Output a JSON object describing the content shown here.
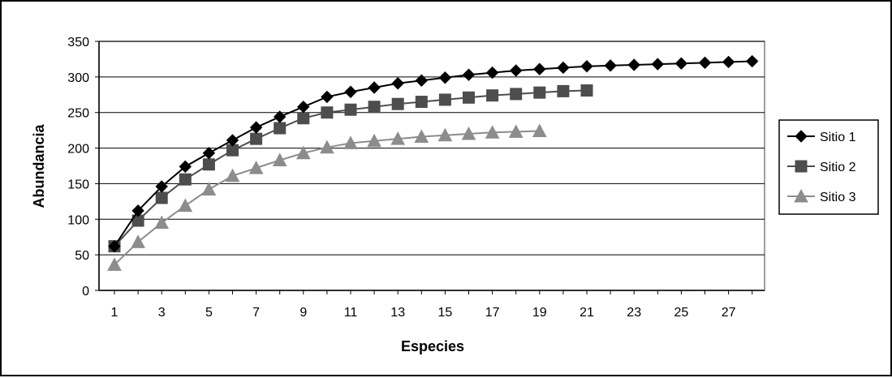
{
  "chart_data": {
    "type": "line",
    "title": "",
    "xlabel": "Especies",
    "ylabel": "Abundancia",
    "x_tick_labels": [
      "1",
      "3",
      "5",
      "7",
      "9",
      "11",
      "13",
      "15",
      "17",
      "19",
      "21",
      "23",
      "25",
      "27"
    ],
    "y_tick_labels": [
      "0",
      "50",
      "100",
      "150",
      "200",
      "250",
      "300",
      "350"
    ],
    "xlim": [
      1,
      28
    ],
    "ylim": [
      0,
      350
    ],
    "y_gridlines": true,
    "x_gridlines": false,
    "legend_position": "right",
    "series": [
      {
        "name": "Sitio 1",
        "marker": "diamond",
        "color": "#000000",
        "x": [
          1,
          2,
          3,
          4,
          5,
          6,
          7,
          8,
          9,
          10,
          11,
          12,
          13,
          14,
          15,
          16,
          17,
          18,
          19,
          20,
          21,
          22,
          23,
          24,
          25,
          26,
          27,
          28
        ],
        "values": [
          62,
          112,
          146,
          174,
          193,
          211,
          229,
          244,
          258,
          272,
          279,
          285,
          291,
          295,
          299,
          303,
          306,
          309,
          311,
          313,
          315,
          316,
          317,
          318,
          319,
          320,
          321,
          322
        ]
      },
      {
        "name": "Sitio 2",
        "marker": "square",
        "color": "#4d4d4d",
        "x": [
          1,
          2,
          3,
          4,
          5,
          6,
          7,
          8,
          9,
          10,
          11,
          12,
          13,
          14,
          15,
          16,
          17,
          18,
          19,
          20,
          21
        ],
        "values": [
          62,
          98,
          130,
          156,
          177,
          197,
          213,
          228,
          242,
          250,
          254,
          258,
          262,
          265,
          268,
          271,
          274,
          276,
          278,
          280,
          281
        ]
      },
      {
        "name": "Sitio 3",
        "marker": "triangle",
        "color": "#8c8c8c",
        "x": [
          1,
          2,
          3,
          4,
          5,
          6,
          7,
          8,
          9,
          10,
          11,
          12,
          13,
          14,
          15,
          16,
          17,
          18,
          19
        ],
        "values": [
          36,
          68,
          95,
          119,
          142,
          161,
          172,
          183,
          193,
          201,
          207,
          210,
          213,
          216,
          218,
          220,
          222,
          223,
          224
        ]
      }
    ]
  }
}
